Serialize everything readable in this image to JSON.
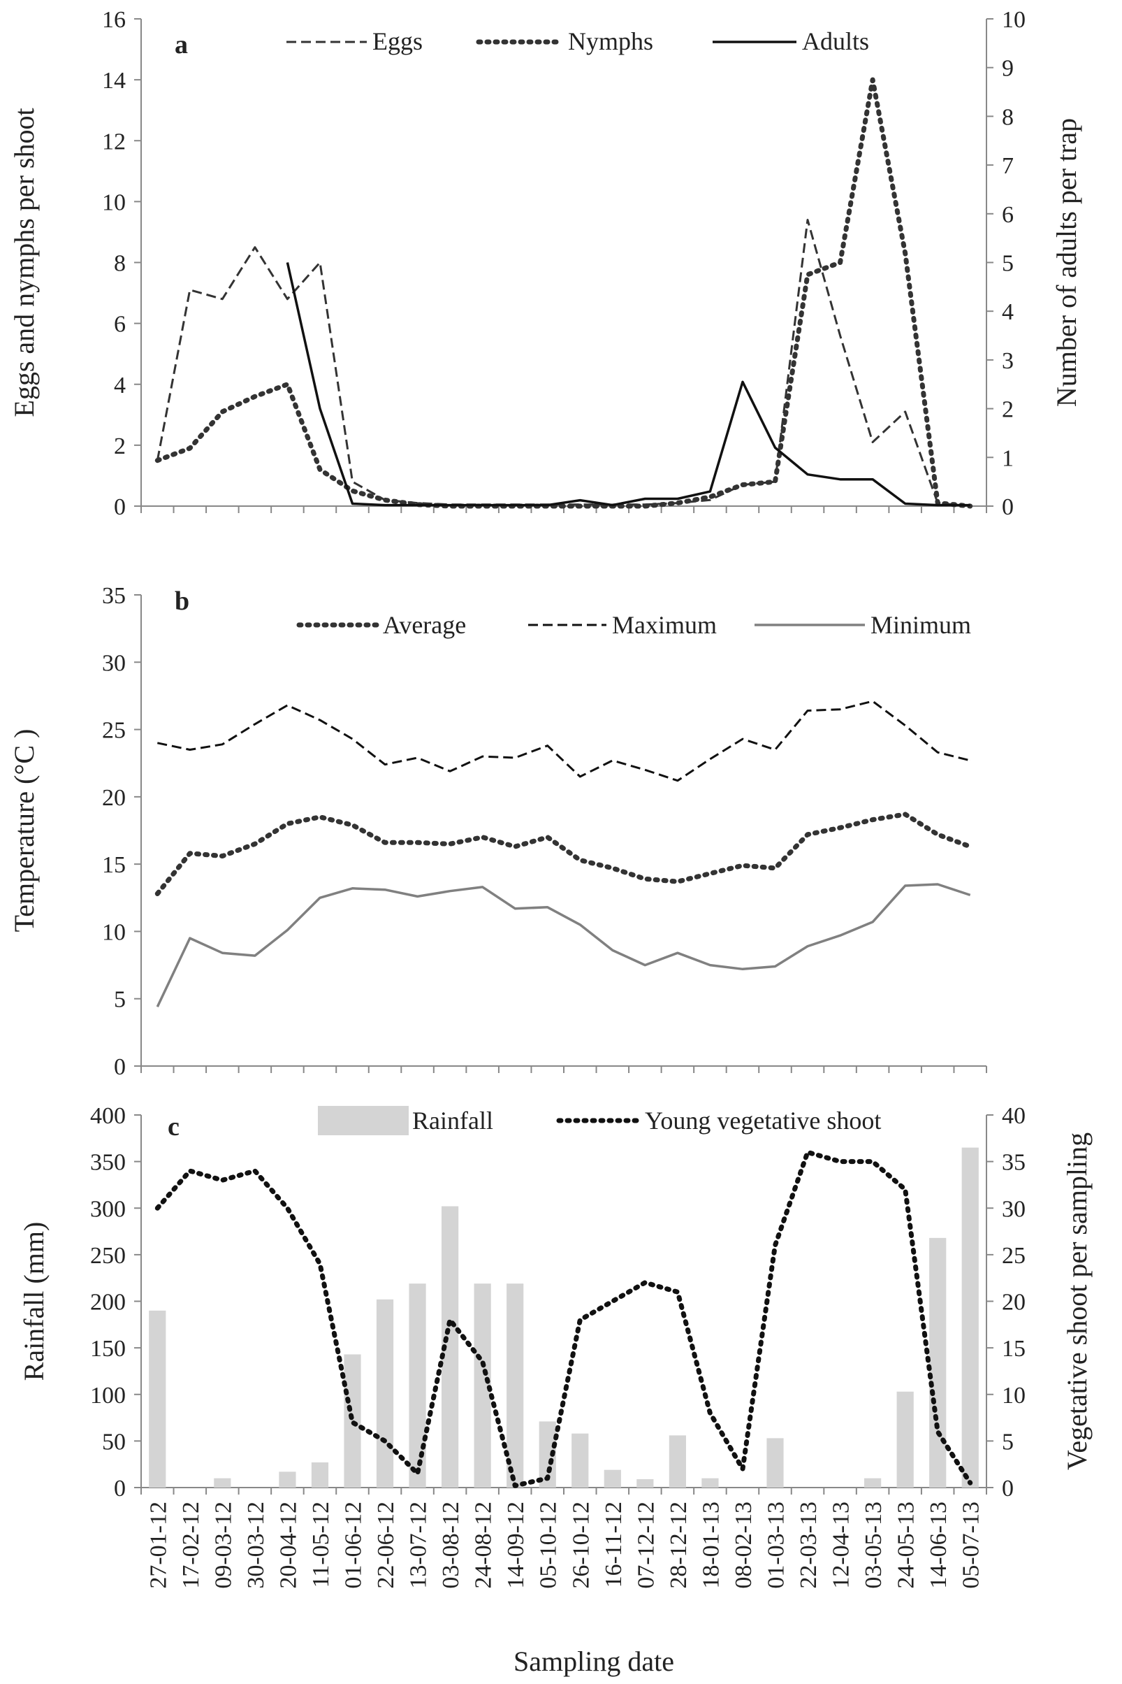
{
  "figure": {
    "xlabel": "Sampling date"
  },
  "dates": [
    "27-01-12",
    "17-02-12",
    "09-03-12",
    "30-03-12",
    "20-04-12",
    "11-05-12",
    "01-06-12",
    "22-06-12",
    "13-07-12",
    "03-08-12",
    "24-08-12",
    "14-09-12",
    "05-10-12",
    "26-10-12",
    "16-11-12",
    "07-12-12",
    "28-12-12",
    "18-01-13",
    "08-02-13",
    "01-03-13",
    "22-03-13",
    "12-04-13",
    "03-05-13",
    "24-05-13",
    "14-06-13",
    "05-07-13"
  ],
  "chart_data": [
    {
      "panel": "a",
      "type": "line",
      "ylabel_left": "Eggs and nymphs per shoot",
      "ylabel_right": "Number of adults per trap",
      "ylim_left": [
        0,
        16
      ],
      "ylim_right": [
        0,
        10
      ],
      "yticks_left": [
        0,
        2,
        4,
        6,
        8,
        10,
        12,
        14,
        16
      ],
      "yticks_right": [
        0,
        1,
        2,
        3,
        4,
        5,
        6,
        7,
        8,
        9,
        10
      ],
      "series": [
        {
          "name": "Eggs",
          "axis": "left",
          "style": "dashed",
          "color": "#333333",
          "x": [
            0,
            1,
            2,
            3,
            4,
            5,
            6,
            7,
            8,
            9,
            10,
            11,
            12,
            13,
            14,
            15,
            16,
            17,
            18,
            19,
            20,
            21,
            22,
            23,
            24,
            25
          ],
          "values": [
            1.5,
            7.1,
            6.8,
            8.5,
            6.8,
            8.0,
            0.8,
            0.2,
            0.1,
            0.05,
            0.05,
            0.05,
            0.05,
            0.05,
            0.05,
            0.05,
            0.1,
            0.2,
            0.7,
            0.8,
            9.4,
            5.6,
            2.1,
            3.1,
            0.1,
            0.0
          ]
        },
        {
          "name": "Nymphs",
          "axis": "left",
          "style": "dotted",
          "color": "#333333",
          "x": [
            0,
            1,
            2,
            3,
            4,
            5,
            6,
            7,
            8,
            9,
            10,
            11,
            12,
            13,
            14,
            15,
            16,
            17,
            18,
            19,
            20,
            21,
            22,
            23,
            24,
            25
          ],
          "values": [
            1.5,
            1.9,
            3.1,
            3.6,
            4.0,
            1.2,
            0.5,
            0.2,
            0.05,
            0.0,
            0.0,
            0.0,
            0.0,
            0.0,
            0.0,
            0.0,
            0.1,
            0.3,
            0.7,
            0.8,
            7.6,
            8.0,
            14.0,
            8.3,
            0.1,
            0.0
          ]
        },
        {
          "name": "Adults",
          "axis": "right",
          "style": "solid",
          "color": "#111111",
          "x": [
            4,
            5,
            6,
            7,
            8,
            9,
            10,
            11,
            12,
            13,
            14,
            15,
            16,
            17,
            18,
            19,
            20,
            21,
            22,
            23,
            24,
            25
          ],
          "values": [
            5.0,
            2.0,
            0.05,
            0.02,
            0.02,
            0.02,
            0.02,
            0.02,
            0.02,
            0.12,
            0.02,
            0.15,
            0.15,
            0.3,
            2.55,
            1.2,
            0.65,
            0.55,
            0.55,
            0.05,
            0.02,
            0.02
          ]
        }
      ]
    },
    {
      "panel": "b",
      "type": "line",
      "ylabel": "Temperature (°C )",
      "ylim": [
        0,
        35
      ],
      "yticks": [
        0,
        5,
        10,
        15,
        20,
        25,
        30,
        35
      ],
      "series": [
        {
          "name": "Average",
          "style": "dotted",
          "color": "#333333",
          "x": [
            0,
            1,
            2,
            3,
            4,
            5,
            6,
            7,
            8,
            9,
            10,
            11,
            12,
            13,
            14,
            15,
            16,
            17,
            18,
            19,
            20,
            21,
            22,
            23,
            24,
            25
          ],
          "values": [
            12.8,
            15.8,
            15.6,
            16.5,
            18.0,
            18.5,
            17.9,
            16.6,
            16.6,
            16.5,
            17.0,
            16.3,
            17.0,
            15.3,
            14.7,
            13.9,
            13.7,
            14.3,
            14.9,
            14.7,
            17.2,
            17.7,
            18.3,
            18.7,
            17.2,
            16.3
          ]
        },
        {
          "name": "Maximum",
          "style": "dashed",
          "color": "#111111",
          "x": [
            0,
            1,
            2,
            3,
            4,
            5,
            6,
            7,
            8,
            9,
            10,
            11,
            12,
            13,
            14,
            15,
            16,
            17,
            18,
            19,
            20,
            21,
            22,
            23,
            24,
            25
          ],
          "values": [
            24.0,
            23.5,
            23.9,
            25.4,
            26.8,
            25.7,
            24.3,
            22.4,
            22.9,
            21.9,
            23.0,
            22.9,
            23.8,
            21.5,
            22.7,
            22.0,
            21.2,
            22.8,
            24.3,
            23.5,
            26.4,
            26.5,
            27.1,
            25.3,
            23.3,
            22.7
          ]
        },
        {
          "name": "Minimum",
          "style": "solid",
          "color": "#808080",
          "x": [
            0,
            1,
            2,
            3,
            4,
            5,
            6,
            7,
            8,
            9,
            10,
            11,
            12,
            13,
            14,
            15,
            16,
            17,
            18,
            19,
            20,
            21,
            22,
            23,
            24,
            25
          ],
          "values": [
            4.4,
            9.5,
            8.4,
            8.2,
            10.1,
            12.5,
            13.2,
            13.1,
            12.6,
            13.0,
            13.3,
            11.7,
            11.8,
            10.5,
            8.6,
            7.5,
            8.4,
            7.5,
            7.2,
            7.4,
            8.9,
            9.7,
            10.7,
            13.4,
            13.5,
            12.7
          ]
        }
      ]
    },
    {
      "panel": "c",
      "type": "bar+line",
      "ylabel_left": "Rainfall (mm)",
      "ylabel_right": "Vegetative shoot  per sampling",
      "ylim_left": [
        0,
        400
      ],
      "ylim_right": [
        0,
        40
      ],
      "yticks_left": [
        0,
        50,
        100,
        150,
        200,
        250,
        300,
        350,
        400
      ],
      "yticks_right": [
        0,
        5,
        10,
        15,
        20,
        25,
        30,
        35,
        40
      ],
      "series": [
        {
          "name": "Rainfall",
          "kind": "bar",
          "axis": "left",
          "color": "#d4d4d4",
          "values": [
            190,
            0,
            10,
            0,
            17,
            27,
            143,
            202,
            219,
            302,
            219,
            219,
            71,
            58,
            19,
            9,
            56,
            10,
            0,
            53,
            0,
            0,
            10,
            103,
            268,
            365
          ]
        },
        {
          "name": "Young vegetative shoot",
          "kind": "line",
          "axis": "right",
          "style": "dotted",
          "color": "#111111",
          "x": [
            0,
            1,
            2,
            3,
            4,
            5,
            6,
            7,
            8,
            9,
            10,
            11,
            12,
            13,
            14,
            15,
            16,
            17,
            18,
            19,
            20,
            21,
            22,
            23,
            24,
            25
          ],
          "values": [
            30,
            34,
            33,
            34,
            30,
            24,
            7,
            5,
            1.5,
            18,
            13.5,
            0.2,
            1,
            18,
            20,
            22,
            21,
            8,
            2,
            26,
            36,
            35,
            35,
            32,
            6,
            0.5
          ]
        }
      ]
    }
  ]
}
